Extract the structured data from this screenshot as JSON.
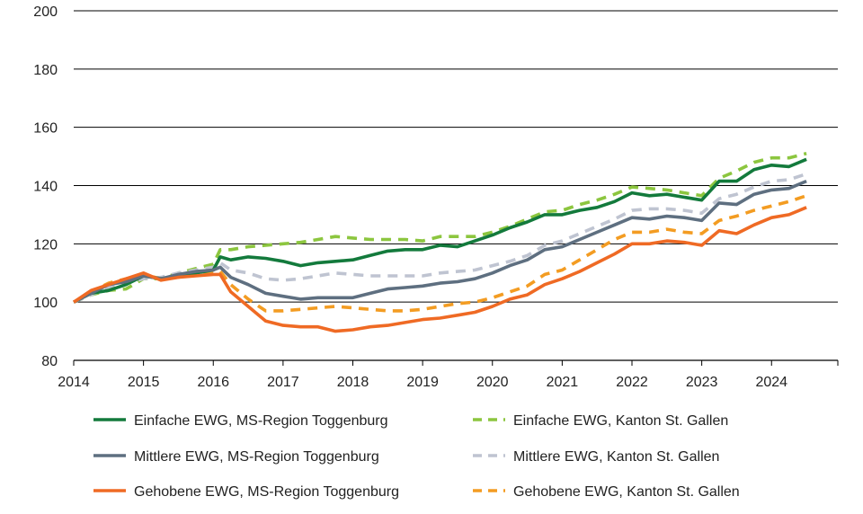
{
  "chart_data": {
    "type": "line",
    "title": "",
    "xlabel": "",
    "ylabel": "",
    "xlim": [
      2014,
      2024.95
    ],
    "ylim": [
      80,
      200
    ],
    "xticks": [
      2014,
      2015,
      2016,
      2017,
      2018,
      2019,
      2020,
      2021,
      2022,
      2023,
      2024
    ],
    "xtick_labels": [
      "2014",
      "2015",
      "2016",
      "2017",
      "2018",
      "2019",
      "2020",
      "2021",
      "2022",
      "2023",
      "2024"
    ],
    "yticks": [
      80,
      100,
      120,
      140,
      160,
      180,
      200
    ],
    "ytick_labels": [
      "80",
      "100",
      "120",
      "140",
      "160",
      "180",
      "200"
    ],
    "grid": "horizontal",
    "legend_position": "bottom",
    "x": [
      2014.0,
      2014.25,
      2014.5,
      2014.75,
      2015.0,
      2015.25,
      2015.5,
      2015.75,
      2016.0,
      2016.1,
      2016.25,
      2016.5,
      2016.75,
      2017.0,
      2017.25,
      2017.5,
      2017.75,
      2018.0,
      2018.25,
      2018.5,
      2018.75,
      2019.0,
      2019.25,
      2019.5,
      2019.75,
      2020.0,
      2020.25,
      2020.5,
      2020.75,
      2021.0,
      2021.25,
      2021.5,
      2021.75,
      2022.0,
      2022.25,
      2022.5,
      2022.75,
      2023.0,
      2023.25,
      2023.5,
      2023.75,
      2024.0,
      2024.25,
      2024.5
    ],
    "series": [
      {
        "name": "Einfache EWG, MS-Region Toggenburg",
        "color": "#137a3c",
        "dash": "solid",
        "values": [
          100,
          103,
          104,
          106,
          109,
          108,
          109,
          110,
          111,
          115.5,
          114.5,
          115.5,
          115,
          114,
          112.5,
          113.5,
          114,
          114.5,
          116,
          117.5,
          118,
          118,
          119.5,
          119,
          121,
          123,
          125.5,
          127.5,
          130,
          130,
          131.5,
          132.5,
          134.5,
          137.5,
          136.5,
          137,
          136,
          135,
          141.5,
          141.5,
          145.5,
          147,
          146.5,
          149
        ]
      },
      {
        "name": "Einfache EWG, Kanton St. Gallen",
        "color": "#8cc63f",
        "dash": "dashed",
        "values": [
          100,
          102.5,
          104,
          104.5,
          108,
          108,
          110,
          111.5,
          113,
          118,
          118,
          119,
          119.5,
          120,
          120.5,
          121.5,
          122.5,
          122,
          121.5,
          121.5,
          121.5,
          121,
          122.5,
          122.5,
          122.5,
          124,
          126,
          128.5,
          131,
          131.5,
          133.5,
          135,
          137,
          139.5,
          139,
          138.5,
          137.5,
          136.5,
          142.5,
          145,
          148,
          149.5,
          149.5,
          151
        ]
      },
      {
        "name": "Mittlere EWG, MS-Region Toggenburg",
        "color": "#5e6f80",
        "dash": "solid",
        "values": [
          100,
          103,
          106,
          107,
          109,
          108,
          109.5,
          110.5,
          111,
          112,
          108.5,
          106,
          103,
          102,
          101,
          101.5,
          101.5,
          101.5,
          103,
          104.5,
          105,
          105.5,
          106.5,
          107,
          108,
          110,
          112.5,
          114.5,
          118,
          119,
          121.5,
          124,
          126.5,
          129,
          128.5,
          129.5,
          129,
          128,
          134,
          133.5,
          137,
          138.5,
          139,
          141.5
        ]
      },
      {
        "name": "Mittlere EWG, Kanton St. Gallen",
        "color": "#bfc4d1",
        "dash": "dashed",
        "values": [
          100,
          102.5,
          105,
          106.5,
          108,
          108.5,
          110,
          111,
          112,
          113.5,
          111,
          110,
          108,
          107.5,
          108,
          109,
          110,
          109.5,
          109,
          109,
          109,
          109,
          110,
          110.5,
          111,
          112.5,
          114,
          116,
          119.5,
          121,
          123.5,
          126,
          128.5,
          131.5,
          132,
          132,
          131.5,
          130.5,
          135.5,
          137,
          139.5,
          141.5,
          142,
          144
        ]
      },
      {
        "name": "Gehobene EWG, MS-Region Toggenburg",
        "color": "#ef6a24",
        "dash": "solid",
        "values": [
          100,
          104,
          106,
          108,
          110,
          107.5,
          108.5,
          109,
          109.5,
          109.5,
          103.5,
          98.5,
          93.5,
          92,
          91.5,
          91.5,
          90,
          90.5,
          91.5,
          92,
          93,
          94,
          94.5,
          95.5,
          96.5,
          98.5,
          101,
          102.5,
          106,
          108,
          110.5,
          113.5,
          116.5,
          120,
          120,
          121,
          120.5,
          119.5,
          124.5,
          123.5,
          126.5,
          129,
          130,
          132.5
        ]
      },
      {
        "name": "Gehobene EWG, Kanton St. Gallen",
        "color": "#f39c22",
        "dash": "dashed",
        "values": [
          100,
          103.5,
          106.5,
          108,
          109.5,
          108,
          108.5,
          110,
          110.5,
          110.5,
          106,
          101,
          97,
          97,
          97.5,
          98,
          98.5,
          98,
          97.5,
          97,
          97,
          97.5,
          98.5,
          99.5,
          100,
          101.5,
          103.5,
          105.5,
          109.5,
          111,
          114.5,
          118,
          121.5,
          124,
          124,
          125,
          124,
          123.5,
          128,
          129.5,
          131.5,
          133,
          134.5,
          136.5
        ]
      }
    ]
  }
}
